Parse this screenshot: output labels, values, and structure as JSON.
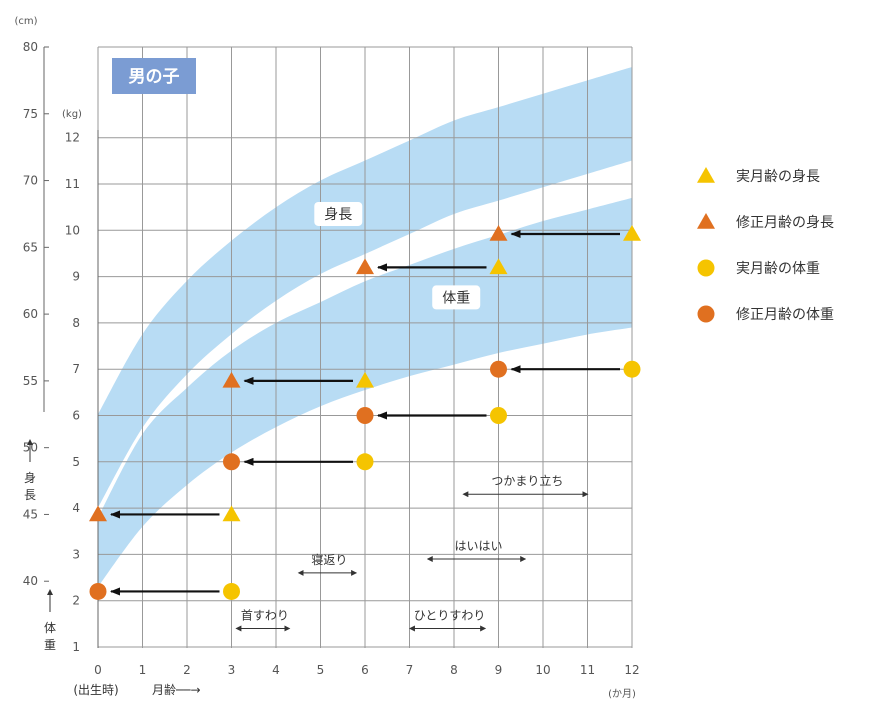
{
  "chart_data": {
    "type": "scatter",
    "title": "男の子",
    "height_unit": "(cm)",
    "weight_unit": "(kg)",
    "x_unit": "(か月)",
    "x_birth_label": "(出生時)",
    "x_axis_label": "月齢──→",
    "y_left_label": "身長",
    "y_right_label": "体重",
    "x_ticks": [
      0,
      1,
      2,
      3,
      4,
      5,
      6,
      7,
      8,
      9,
      10,
      11,
      12
    ],
    "height_ticks": [
      40,
      45,
      50,
      55,
      60,
      65,
      70,
      75,
      80
    ],
    "weight_ticks": [
      1,
      2,
      3,
      4,
      5,
      6,
      7,
      8,
      9,
      10,
      11,
      12
    ],
    "xlim": [
      0,
      12
    ],
    "height_ylim": [
      35,
      80
    ],
    "weight_ylim": [
      1,
      12
    ],
    "grid": true,
    "bands": [
      {
        "name": "身長",
        "x": [
          0,
          1,
          2,
          3,
          4,
          5,
          6,
          7,
          8,
          9,
          10,
          11,
          12
        ],
        "upper": [
          52.5,
          58.5,
          62.5,
          65.5,
          68,
          70,
          71.5,
          73,
          74.5,
          75.5,
          76.5,
          77.5,
          78.5
        ],
        "lower": [
          45.5,
          51.5,
          55.5,
          58.5,
          61,
          63,
          64.5,
          66,
          67.5,
          68.5,
          69.5,
          70.5,
          71.5
        ]
      },
      {
        "name": "体重",
        "x": [
          0,
          1,
          2,
          3,
          4,
          5,
          6,
          7,
          8,
          9,
          10,
          11,
          12
        ],
        "upper": [
          3.8,
          5.6,
          6.6,
          7.4,
          8.0,
          8.45,
          8.9,
          9.25,
          9.6,
          9.9,
          10.2,
          10.45,
          10.7
        ],
        "lower": [
          2.3,
          3.6,
          4.5,
          5.2,
          5.75,
          6.2,
          6.55,
          6.85,
          7.1,
          7.35,
          7.55,
          7.75,
          7.9
        ]
      }
    ],
    "series": [
      {
        "name": "実月齢の身長",
        "color": "#f5c400",
        "marker": "triangle",
        "scale": "height",
        "points": [
          [
            3,
            45
          ],
          [
            6,
            55
          ],
          [
            9,
            63.5
          ],
          [
            12,
            66
          ]
        ]
      },
      {
        "name": "修正月齢の身長",
        "color": "#e07020",
        "marker": "triangle",
        "scale": "height",
        "points": [
          [
            0,
            45
          ],
          [
            3,
            55
          ],
          [
            6,
            63.5
          ],
          [
            9,
            66
          ]
        ]
      },
      {
        "name": "実月齢の体重",
        "color": "#f5c400",
        "marker": "circle",
        "scale": "weight",
        "points": [
          [
            3,
            2.2
          ],
          [
            6,
            5
          ],
          [
            9,
            6
          ]
        ]
      },
      {
        "name": "修正月齢の体重",
        "color": "#e07020",
        "marker": "circle",
        "scale": "weight",
        "points": [
          [
            0,
            2.2
          ],
          [
            3,
            5
          ],
          [
            6,
            6
          ],
          [
            9,
            7
          ]
        ]
      }
    ],
    "extra_point": {
      "color": "#f5c400",
      "marker": "circle",
      "scale": "weight",
      "point": [
        12,
        7
      ]
    },
    "arrows": [
      {
        "scale": "height",
        "from": [
          12,
          66
        ],
        "to": [
          9,
          66
        ]
      },
      {
        "scale": "height",
        "from": [
          9,
          63.5
        ],
        "to": [
          6,
          63.5
        ]
      },
      {
        "scale": "height",
        "from": [
          6,
          55
        ],
        "to": [
          3,
          55
        ]
      },
      {
        "scale": "height",
        "from": [
          3,
          45
        ],
        "to": [
          0,
          45
        ]
      },
      {
        "scale": "weight",
        "from": [
          12,
          7
        ],
        "to": [
          9,
          7
        ]
      },
      {
        "scale": "weight",
        "from": [
          9,
          6
        ],
        "to": [
          6,
          6
        ]
      },
      {
        "scale": "weight",
        "from": [
          6,
          5
        ],
        "to": [
          3,
          5
        ]
      },
      {
        "scale": "weight",
        "from": [
          3,
          2.2
        ],
        "to": [
          0,
          2.2
        ]
      }
    ],
    "band_labels": [
      {
        "text": "身長",
        "x": 5.4,
        "scale": "height",
        "y": 67.5
      },
      {
        "text": "体重",
        "x": 8.05,
        "scale": "weight",
        "y": 8.55
      }
    ],
    "milestones": [
      {
        "label": "首すわり",
        "x1": 3.2,
        "x2": 4.3,
        "weight": 1.4
      },
      {
        "label": "寝返り",
        "x1": 4.6,
        "x2": 5.8,
        "weight": 2.6
      },
      {
        "label": "ひとりすわり",
        "x1": 7.1,
        "x2": 8.7,
        "weight": 1.4
      },
      {
        "label": "はいはい",
        "x1": 7.5,
        "x2": 9.6,
        "weight": 2.9
      },
      {
        "label": "つかまり立ち",
        "x1": 8.3,
        "x2": 11.0,
        "weight": 4.3
      }
    ],
    "legend": [
      {
        "label": "実月齢の身長",
        "color": "#f5c400",
        "marker": "triangle"
      },
      {
        "label": "修正月齢の身長",
        "color": "#e07020",
        "marker": "triangle"
      },
      {
        "label": "実月齢の体重",
        "color": "#f5c400",
        "marker": "circle"
      },
      {
        "label": "修正月齢の体重",
        "color": "#e07020",
        "marker": "circle"
      }
    ],
    "legend_placement": "right",
    "colors": {
      "band": "#b8dcf4",
      "grid": "#999999",
      "title_bg": "#7b9cd3"
    }
  }
}
